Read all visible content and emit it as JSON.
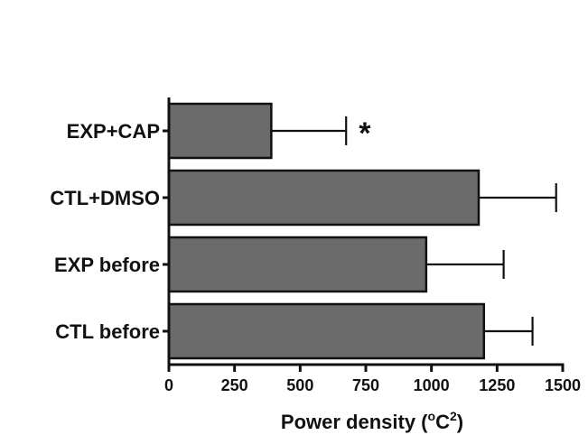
{
  "chart_data": {
    "type": "bar",
    "orientation": "horizontal",
    "categories": [
      "EXP+CAP",
      "CTL+DMSO",
      "EXP before",
      "CTL before"
    ],
    "values": [
      390,
      1180,
      980,
      1200
    ],
    "error_plus": [
      285,
      295,
      295,
      185
    ],
    "xlabel": {
      "prefix": "Power density (",
      "degree": "o",
      "unit": "C",
      "exponent": "2",
      "suffix": ")"
    },
    "xlim": [
      0,
      1500
    ],
    "xticks": [
      "0",
      "250",
      "500",
      "750",
      "1000",
      "1250",
      "1500"
    ],
    "annotations": [
      {
        "category": "EXP+CAP",
        "text": "*"
      }
    ],
    "grid": false,
    "legend": "none",
    "colors": {
      "bar": "#6b6b6b",
      "outline": "#111111"
    }
  }
}
